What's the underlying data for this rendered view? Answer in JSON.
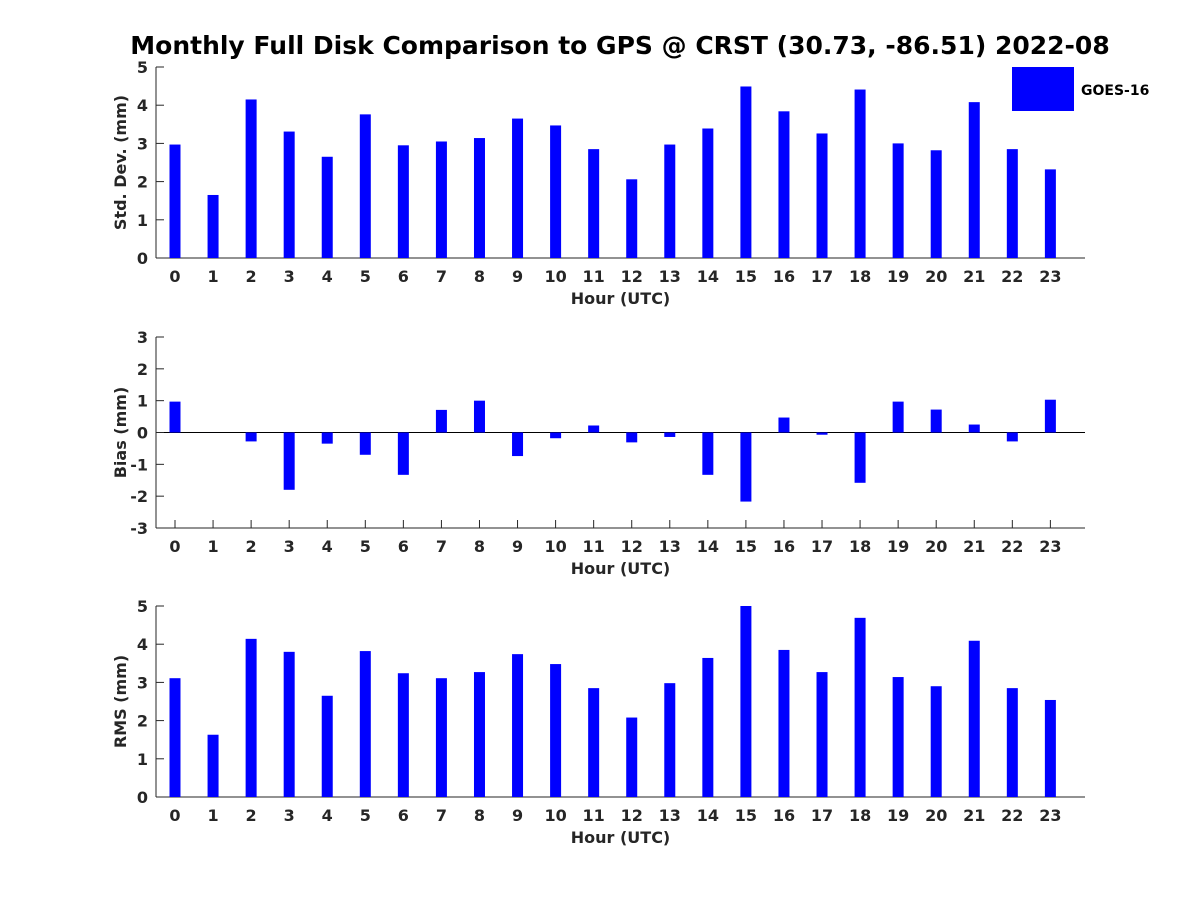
{
  "title": "Monthly Full Disk Comparison to GPS @ CRST (30.73, -86.51) 2022-08",
  "legend": {
    "label": "GOES-16",
    "color": "#0000ff"
  },
  "bar_color": "#0000ff",
  "chart_data": [
    {
      "type": "bar",
      "ylabel": "Std. Dev. (mm)",
      "xlabel": "Hour (UTC)",
      "ylim": [
        0,
        5
      ],
      "yticks": [
        0,
        1,
        2,
        3,
        4,
        5
      ],
      "categories": [
        "0",
        "1",
        "2",
        "3",
        "4",
        "5",
        "6",
        "7",
        "8",
        "9",
        "10",
        "11",
        "12",
        "13",
        "14",
        "15",
        "16",
        "17",
        "18",
        "19",
        "20",
        "21",
        "22",
        "23"
      ],
      "series": [
        {
          "name": "GOES-16",
          "values": [
            2.97,
            1.65,
            4.15,
            3.31,
            2.65,
            3.76,
            2.95,
            3.05,
            3.14,
            3.65,
            3.47,
            2.85,
            2.06,
            2.97,
            3.39,
            4.49,
            3.84,
            3.26,
            4.41,
            3.0,
            2.82,
            4.08,
            2.85,
            2.32
          ]
        }
      ],
      "zero_line": false,
      "legend_position": "top-right"
    },
    {
      "type": "bar",
      "ylabel": "Bias (mm)",
      "xlabel": "Hour (UTC)",
      "ylim": [
        -3,
        3
      ],
      "yticks": [
        -3,
        -2,
        -1,
        0,
        1,
        2,
        3
      ],
      "categories": [
        "0",
        "1",
        "2",
        "3",
        "4",
        "5",
        "6",
        "7",
        "8",
        "9",
        "10",
        "11",
        "12",
        "13",
        "14",
        "15",
        "16",
        "17",
        "18",
        "19",
        "20",
        "21",
        "22",
        "23"
      ],
      "series": [
        {
          "name": "GOES-16",
          "values": [
            0.97,
            0.0,
            -0.28,
            -1.8,
            -0.35,
            -0.7,
            -1.33,
            0.71,
            1.0,
            -0.74,
            -0.18,
            0.22,
            -0.31,
            -0.14,
            -1.33,
            -2.17,
            0.47,
            -0.07,
            -1.58,
            0.97,
            0.72,
            0.25,
            -0.28,
            1.03
          ]
        }
      ],
      "zero_line": true
    },
    {
      "type": "bar",
      "ylabel": "RMS (mm)",
      "xlabel": "Hour (UTC)",
      "ylim": [
        0,
        5
      ],
      "yticks": [
        0,
        1,
        2,
        3,
        4,
        5
      ],
      "categories": [
        "0",
        "1",
        "2",
        "3",
        "4",
        "5",
        "6",
        "7",
        "8",
        "9",
        "10",
        "11",
        "12",
        "13",
        "14",
        "15",
        "16",
        "17",
        "18",
        "19",
        "20",
        "21",
        "22",
        "23"
      ],
      "series": [
        {
          "name": "GOES-16",
          "values": [
            3.11,
            1.63,
            4.14,
            3.8,
            2.65,
            3.82,
            3.24,
            3.11,
            3.27,
            3.74,
            3.48,
            2.85,
            2.08,
            2.98,
            3.64,
            5.0,
            3.85,
            3.27,
            4.69,
            3.14,
            2.9,
            4.09,
            2.85,
            2.54
          ]
        }
      ],
      "zero_line": false
    }
  ]
}
